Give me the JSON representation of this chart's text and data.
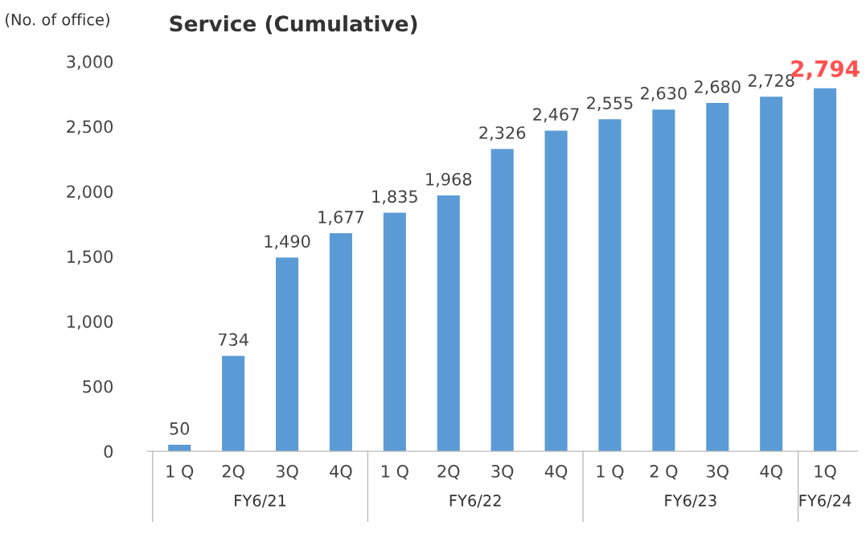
{
  "chart_data": {
    "type": "bar",
    "title": "Service (Cumulative)",
    "ylabel": "(No. of office)",
    "categories": [
      "1 Q",
      "2Q",
      "3Q",
      "4Q",
      "1 Q",
      "2Q",
      "3Q",
      "4Q",
      "1 Q",
      "2 Q",
      "3Q",
      "4Q",
      "1Q"
    ],
    "values": [
      50,
      734,
      1490,
      1677,
      1835,
      1968,
      2326,
      2467,
      2555,
      2630,
      2680,
      2728,
      2794
    ],
    "value_labels": [
      "50",
      "734",
      "1,490",
      "1,677",
      "1,835",
      "1,968",
      "2,326",
      "2,467",
      "2,555",
      "2,630",
      "2,680",
      "2,728",
      "2,794"
    ],
    "color": "#5b9bd5",
    "ylim": [
      0,
      3000
    ],
    "yticks": [
      0,
      {
        "value": 500,
        "label": "500"
      },
      {
        "value": 1000,
        "label": "1,000"
      },
      {
        "value": 1500,
        "label": "1,500"
      },
      {
        "value": 2000,
        "label": "2,000"
      },
      {
        "value": 2500,
        "label": "2,500"
      },
      {
        "value": 3000,
        "label": "3,000"
      }
    ],
    "annotations": [
      "FY6/21",
      "FY6/22",
      "FY6/23",
      "FY6/24"
    ],
    "grid": false,
    "legend": false
  }
}
